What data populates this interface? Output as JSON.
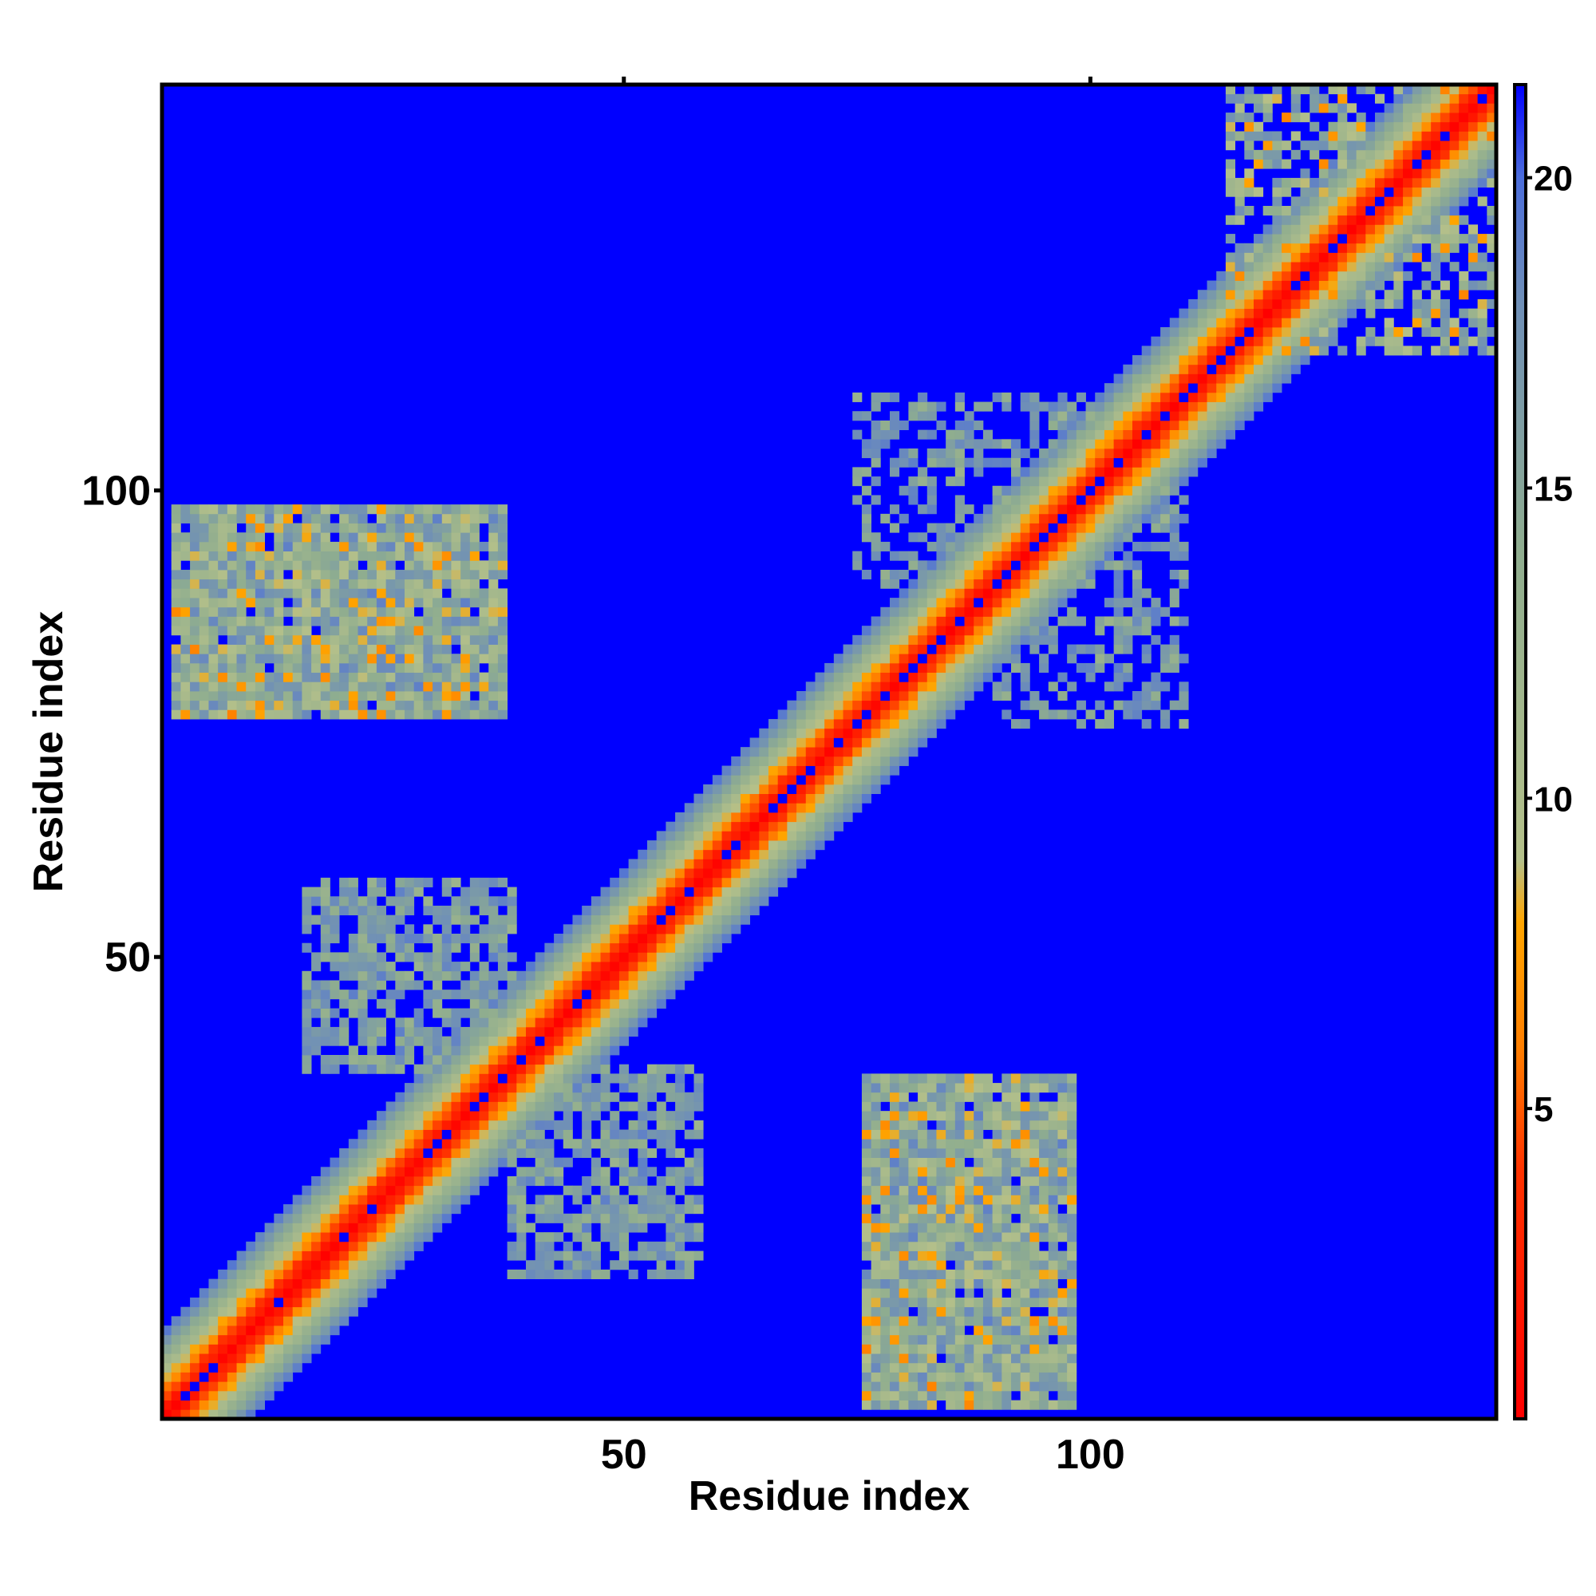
{
  "chart_data": {
    "type": "heatmap",
    "title": "",
    "xlabel": "Residue index",
    "ylabel": "Residue index",
    "n_residues": 143,
    "xlim": [
      1,
      143
    ],
    "ylim": [
      1,
      143
    ],
    "x_ticks": [
      50,
      100
    ],
    "y_ticks": [
      50,
      100
    ],
    "x_tick_labels": [
      "50",
      "100"
    ],
    "y_tick_labels": [
      "50",
      "100"
    ],
    "colorbar": {
      "range": [
        0,
        21.5
      ],
      "ticks": [
        5,
        10,
        15,
        20
      ],
      "tick_labels": [
        "5",
        "10",
        "15",
        "20"
      ],
      "stops": [
        {
          "value": 0,
          "color": "#ff0000"
        },
        {
          "value": 4,
          "color": "#ff3300"
        },
        {
          "value": 6,
          "color": "#ff7f00"
        },
        {
          "value": 8,
          "color": "#ffa500"
        },
        {
          "value": 9,
          "color": "#b4c08a"
        },
        {
          "value": 14,
          "color": "#8fad8f"
        },
        {
          "value": 18,
          "color": "#6f8fb7"
        },
        {
          "value": 20,
          "color": "#4c6edb"
        },
        {
          "value": 21.5,
          "color": "#0000ff"
        }
      ],
      "background_color": "#0000ff"
    },
    "value_meaning": "pairwise distance (contact map); cells above ~20 rendered as blue background",
    "diagonal_band": {
      "center_value": 0,
      "half_width_residues": 8,
      "saturation_value": 20
    },
    "off_diagonal_regions": [
      {
        "name": "upper-left block",
        "x_range": [
          2,
          37
        ],
        "y_range": [
          76,
          98
        ],
        "min_value": 6,
        "max_value": 19
      },
      {
        "name": "lower-right block",
        "x_range": [
          76,
          98
        ],
        "y_range": [
          2,
          37
        ],
        "min_value": 6,
        "max_value": 19
      },
      {
        "name": "left-middle scatter",
        "x_range": [
          16,
          38
        ],
        "y_range": [
          38,
          58
        ],
        "min_value": 12,
        "max_value": 19
      },
      {
        "name": "bottom-middle scatter",
        "x_range": [
          38,
          58
        ],
        "y_range": [
          16,
          38
        ],
        "min_value": 12,
        "max_value": 19
      },
      {
        "name": "top-right corner",
        "x_range": [
          115,
          143
        ],
        "y_range": [
          115,
          143
        ],
        "min_value": 5,
        "max_value": 18
      },
      {
        "name": "right-middle scatter",
        "x_range": [
          75,
          100
        ],
        "y_range": [
          90,
          110
        ],
        "min_value": 12,
        "max_value": 19
      }
    ]
  }
}
